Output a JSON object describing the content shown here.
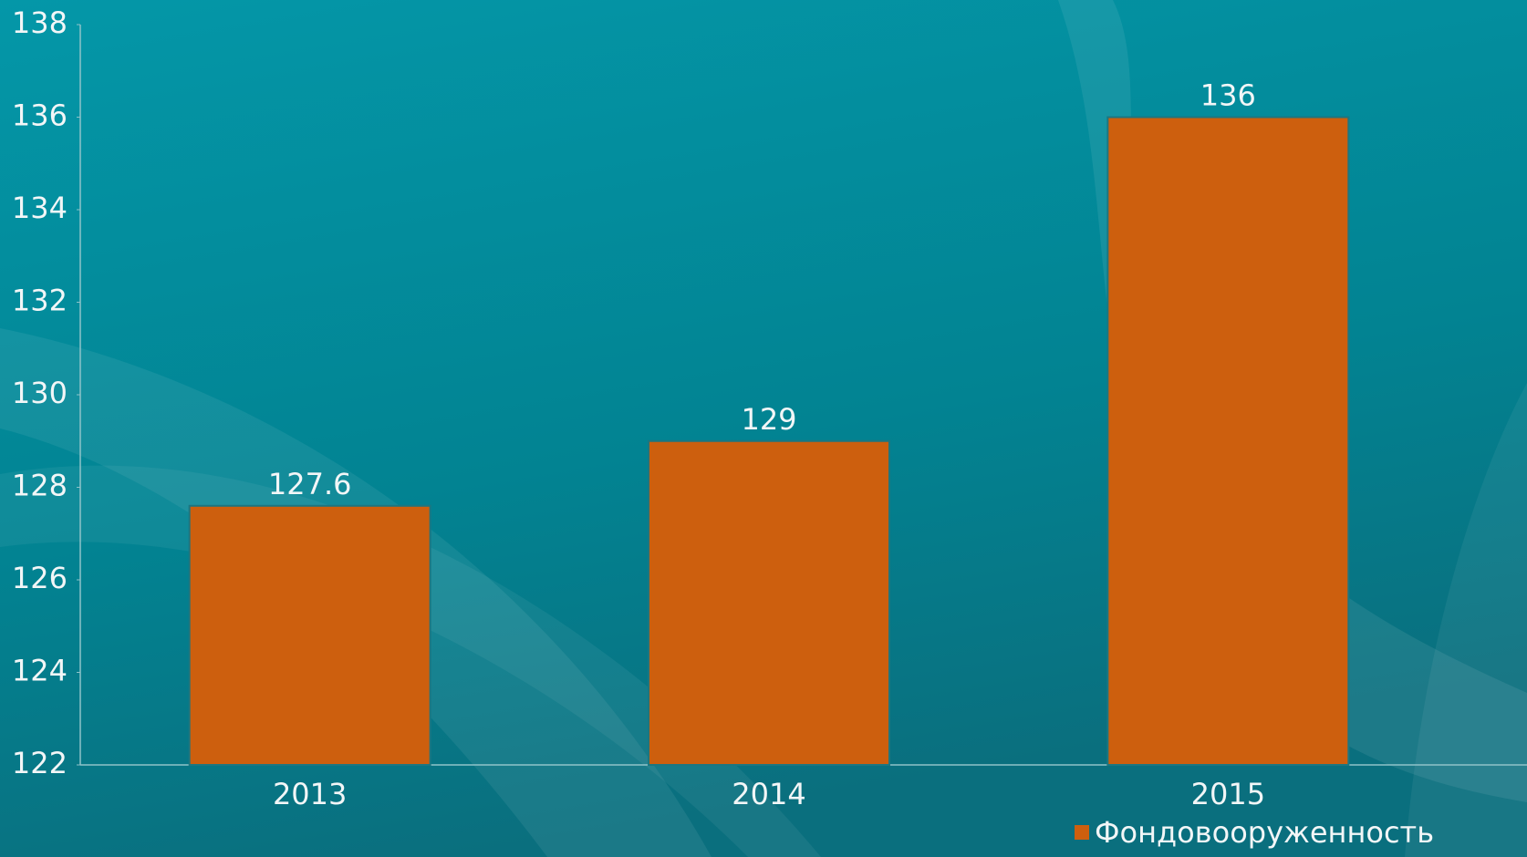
{
  "chart_data": {
    "type": "bar",
    "categories": [
      "2013",
      "2014",
      "2015"
    ],
    "series": [
      {
        "name": "Фондовооруженность",
        "color": "#cd5f0e",
        "values": [
          127.6,
          129,
          136
        ]
      }
    ],
    "ylim": [
      122,
      138
    ],
    "yticks": [
      122,
      124,
      126,
      128,
      130,
      132,
      134,
      136,
      138
    ],
    "legend": "bottom-right"
  }
}
